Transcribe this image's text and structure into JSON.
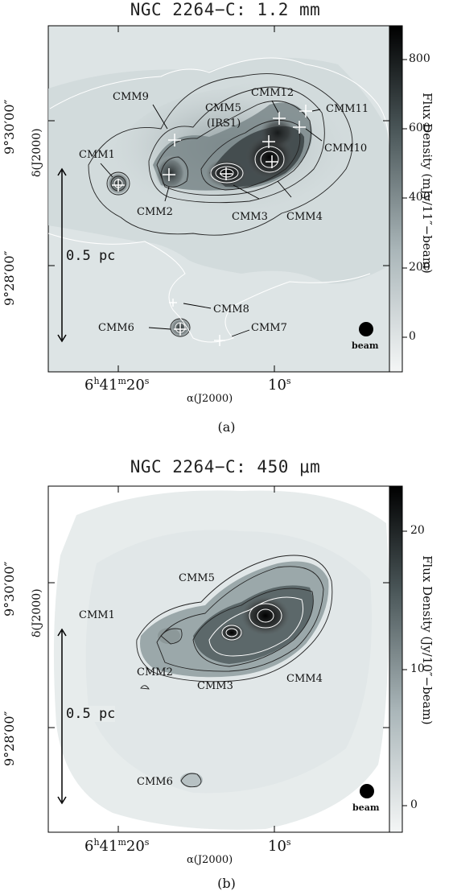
{
  "panels": [
    {
      "title": "NGC 2264−C: 1.2 mm",
      "sublabel": "(a)",
      "ylabel": "δ(J2000)",
      "xlabel": "α(J2000)",
      "ytick_1": "9°30′00″",
      "ytick_2": "9°28′00″",
      "xtick_1_main": "6",
      "xtick_1_h": "h",
      "xtick_1_m": "41",
      "xtick_1_msup": "m",
      "xtick_1_s": "20",
      "xtick_1_ssup": "s",
      "xtick_2": "10",
      "xtick_2_sup": "s",
      "scale_label": "0.5 pc",
      "beam_label": "beam",
      "colorbar_label": "Flux Density (mJy/11″−beam)",
      "colorbar_ticks": [
        "800",
        "600",
        "400",
        "200",
        "0"
      ],
      "sources": [
        {
          "name": "CMM1"
        },
        {
          "name": "CMM9"
        },
        {
          "name": "CMM5"
        },
        {
          "name": "(IRS1)"
        },
        {
          "name": "CMM12"
        },
        {
          "name": "CMM11"
        },
        {
          "name": "CMM10"
        },
        {
          "name": "CMM2"
        },
        {
          "name": "CMM3"
        },
        {
          "name": "CMM4"
        },
        {
          "name": "CMM8"
        },
        {
          "name": "CMM6"
        },
        {
          "name": "CMM7"
        }
      ]
    },
    {
      "title": "NGC 2264−C: 450 μm",
      "sublabel": "(b)",
      "ylabel": "δ(J2000)",
      "xlabel": "α(J2000)",
      "ytick_1": "9°30′00″",
      "ytick_2": "9°28′00″",
      "xtick_1_main": "6",
      "xtick_1_h": "h",
      "xtick_1_m": "41",
      "xtick_1_msup": "m",
      "xtick_1_s": "20",
      "xtick_1_ssup": "s",
      "xtick_2": "10",
      "xtick_2_sup": "s",
      "scale_label": "0.5 pc",
      "beam_label": "beam",
      "colorbar_label": "Flux Density (Jy/10″−beam)",
      "colorbar_ticks": [
        "20",
        "10",
        "0"
      ],
      "sources": [
        {
          "name": "CMM5"
        },
        {
          "name": "CMM1"
        },
        {
          "name": "CMM2"
        },
        {
          "name": "CMM3"
        },
        {
          "name": "CMM4"
        },
        {
          "name": "CMM6"
        }
      ]
    }
  ],
  "colors": {
    "background": "#ffffff",
    "map_low": "#e3e9ea",
    "map_high": "#000000",
    "contour_dark": "#222222",
    "contour_light": "#ffffff"
  }
}
